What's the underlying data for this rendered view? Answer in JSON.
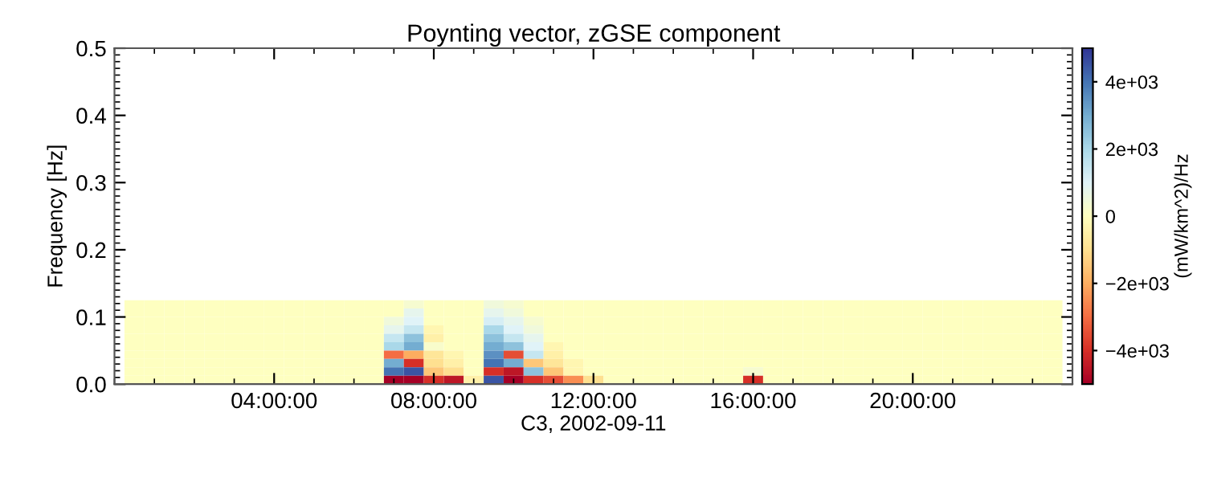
{
  "chart_data": {
    "type": "heatmap",
    "title": "Poynting vector, zGSE component",
    "xlabel": "C3, 2002-09-11",
    "ylabel": "Frequency [Hz]",
    "clabel": "(mW/km^2)/Hz",
    "x": [
      0.5,
      1.0,
      1.5,
      2.0,
      2.5,
      3.0,
      3.5,
      4.0,
      4.5,
      5.0,
      5.5,
      6.0,
      6.5,
      7.0,
      7.5,
      8.0,
      8.5,
      9.0,
      9.5,
      10.0,
      10.5,
      11.0,
      11.5,
      12.0,
      12.5,
      13.0,
      13.5,
      14.0,
      14.5,
      15.0,
      15.5,
      16.0,
      16.5,
      17.0,
      17.5,
      18.0,
      18.5,
      19.0,
      19.5,
      20.0,
      20.5,
      21.0,
      21.5,
      22.0,
      22.5,
      23.0,
      23.5
    ],
    "y": [
      0.11875,
      0.10625,
      0.09375,
      0.08125,
      0.06875,
      0.05625,
      0.04375,
      0.03125,
      0.01875,
      0.00625
    ],
    "cells": [
      [
        0,
        0,
        0,
        0,
        0,
        0,
        0,
        0,
        0,
        0,
        0,
        0,
        0,
        0,
        300,
        0,
        0,
        0,
        500,
        300,
        0,
        0,
        0,
        0,
        0,
        0,
        0,
        0,
        0,
        0,
        0,
        0,
        0,
        0,
        0,
        0,
        0,
        0,
        0,
        0,
        0,
        0,
        0,
        0,
        0,
        0,
        0
      ],
      [
        0,
        0,
        0,
        0,
        0,
        0,
        0,
        0,
        0,
        0,
        0,
        0,
        0,
        0,
        800,
        0,
        0,
        0,
        800,
        500,
        0,
        0,
        0,
        0,
        0,
        0,
        0,
        0,
        0,
        0,
        0,
        0,
        0,
        0,
        0,
        0,
        0,
        0,
        0,
        0,
        0,
        0,
        0,
        0,
        0,
        0,
        0
      ],
      [
        0,
        0,
        0,
        0,
        0,
        0,
        0,
        0,
        0,
        0,
        0,
        0,
        0,
        500,
        1000,
        0,
        0,
        0,
        1200,
        800,
        300,
        0,
        0,
        0,
        0,
        0,
        0,
        0,
        0,
        0,
        0,
        0,
        0,
        0,
        0,
        0,
        0,
        0,
        0,
        0,
        0,
        0,
        0,
        0,
        0,
        0,
        0
      ],
      [
        0,
        0,
        0,
        0,
        0,
        0,
        0,
        0,
        0,
        0,
        0,
        0,
        0,
        800,
        1500,
        -300,
        0,
        0,
        2000,
        1000,
        500,
        0,
        0,
        0,
        0,
        0,
        0,
        0,
        0,
        0,
        0,
        0,
        0,
        0,
        0,
        0,
        0,
        0,
        0,
        0,
        0,
        0,
        0,
        0,
        0,
        0,
        0
      ],
      [
        0,
        0,
        0,
        0,
        0,
        0,
        0,
        0,
        0,
        0,
        0,
        0,
        0,
        1500,
        2500,
        -500,
        0,
        0,
        2500,
        1500,
        800,
        0,
        0,
        0,
        0,
        0,
        0,
        0,
        0,
        0,
        0,
        0,
        0,
        0,
        0,
        0,
        0,
        0,
        0,
        0,
        0,
        0,
        0,
        0,
        0,
        0,
        0
      ],
      [
        0,
        0,
        0,
        0,
        0,
        0,
        0,
        0,
        0,
        0,
        0,
        0,
        0,
        2000,
        3000,
        200,
        0,
        0,
        3000,
        2500,
        1000,
        -300,
        0,
        0,
        0,
        0,
        0,
        0,
        0,
        0,
        0,
        0,
        0,
        0,
        0,
        0,
        0,
        0,
        0,
        0,
        0,
        0,
        0,
        0,
        0,
        0,
        0
      ],
      [
        0,
        0,
        0,
        0,
        0,
        0,
        0,
        0,
        0,
        0,
        0,
        0,
        0,
        -3000,
        -2000,
        -800,
        -300,
        0,
        3500,
        -3500,
        1500,
        -500,
        0,
        0,
        0,
        0,
        0,
        0,
        0,
        0,
        0,
        0,
        0,
        0,
        0,
        0,
        0,
        0,
        0,
        0,
        0,
        0,
        0,
        0,
        0,
        0,
        0
      ],
      [
        0,
        0,
        0,
        0,
        0,
        0,
        0,
        0,
        0,
        0,
        0,
        0,
        0,
        3000,
        -4000,
        -1000,
        -500,
        0,
        4000,
        3000,
        -1500,
        -800,
        -300,
        0,
        0,
        0,
        0,
        0,
        0,
        0,
        0,
        0,
        0,
        0,
        0,
        0,
        0,
        0,
        0,
        0,
        0,
        0,
        0,
        0,
        0,
        0,
        0
      ],
      [
        0,
        0,
        0,
        0,
        0,
        0,
        0,
        0,
        0,
        0,
        0,
        0,
        0,
        4000,
        4500,
        -1500,
        -1000,
        0,
        -4000,
        -4500,
        2500,
        -1500,
        -300,
        0,
        0,
        0,
        0,
        0,
        0,
        0,
        0,
        300,
        0,
        0,
        0,
        0,
        0,
        0,
        0,
        0,
        0,
        0,
        0,
        0,
        0,
        0,
        0
      ],
      [
        0,
        0,
        0,
        0,
        0,
        0,
        0,
        0,
        0,
        0,
        0,
        0,
        0,
        -5000,
        -5000,
        -4000,
        -4500,
        -500,
        4500,
        -5000,
        -4000,
        -3500,
        -2500,
        -1000,
        0,
        0,
        0,
        0,
        0,
        0,
        0,
        -4000,
        0,
        0,
        0,
        0,
        0,
        0,
        0,
        0,
        0,
        0,
        0,
        0,
        0,
        0,
        0
      ]
    ],
    "xlim": [
      0,
      24
    ],
    "ylim": [
      0,
      0.5
    ],
    "xticks": [
      {
        "value": 4,
        "label": "04:00:00"
      },
      {
        "value": 8,
        "label": "08:00:00"
      },
      {
        "value": 12,
        "label": "12:00:00"
      },
      {
        "value": 16,
        "label": "16:00:00"
      },
      {
        "value": 20,
        "label": "20:00:00"
      }
    ],
    "yticks": [
      {
        "value": 0,
        "label": "0.0"
      },
      {
        "value": 0.1,
        "label": "0.1"
      },
      {
        "value": 0.2,
        "label": "0.2"
      },
      {
        "value": 0.3,
        "label": "0.3"
      },
      {
        "value": 0.4,
        "label": "0.4"
      },
      {
        "value": 0.5,
        "label": "0.5"
      }
    ],
    "clim": [
      -5000,
      5000
    ],
    "cticks": [
      {
        "value": -4000,
        "label": "−4e+03"
      },
      {
        "value": -2000,
        "label": "−2e+03"
      },
      0,
      {
        "value": 2000,
        "label": "2e+03"
      },
      {
        "value": 4000,
        "label": "4e+03"
      }
    ]
  }
}
